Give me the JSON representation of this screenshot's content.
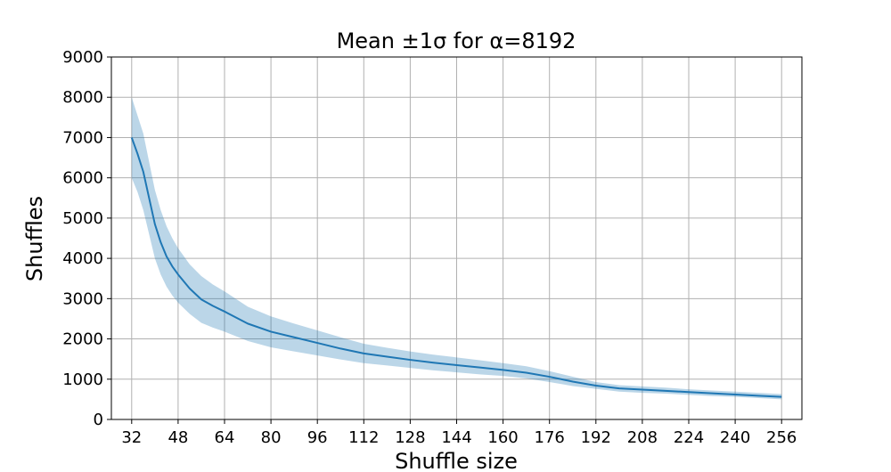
{
  "chart_data": {
    "type": "line",
    "title": "Mean ±1σ for α=8192",
    "xlabel": "Shuffle size",
    "ylabel": "Shuffles",
    "xlim": [
      25,
      263
    ],
    "ylim": [
      0,
      9000
    ],
    "xticks": [
      32,
      48,
      64,
      80,
      96,
      112,
      128,
      144,
      160,
      176,
      192,
      208,
      224,
      240,
      256
    ],
    "xtick_labels": [
      "32",
      "48",
      "64",
      "80",
      "96",
      "112",
      "128",
      "144",
      "160",
      "176",
      "192",
      "208",
      "224",
      "240",
      "256"
    ],
    "yticks": [
      0,
      1000,
      2000,
      3000,
      4000,
      5000,
      6000,
      7000,
      8000,
      9000
    ],
    "ytick_labels": [
      "0",
      "1000",
      "2000",
      "3000",
      "4000",
      "5000",
      "6000",
      "7000",
      "8000",
      "9000"
    ],
    "grid": true,
    "colors": {
      "line": "#1f77b4",
      "band": "#1f77b4",
      "grid": "#b0b0b0"
    },
    "series": [
      {
        "name": "Mean",
        "x": [
          32,
          34,
          36,
          38,
          40,
          42,
          44,
          46,
          48,
          52,
          56,
          60,
          64,
          72,
          80,
          88,
          96,
          104,
          112,
          120,
          128,
          136,
          144,
          152,
          160,
          168,
          176,
          184,
          192,
          200,
          208,
          216,
          224,
          232,
          240,
          248,
          256
        ],
        "y": [
          7000,
          6600,
          6150,
          5500,
          4850,
          4400,
          4050,
          3800,
          3600,
          3250,
          2980,
          2820,
          2680,
          2380,
          2180,
          2040,
          1900,
          1760,
          1640,
          1560,
          1480,
          1410,
          1350,
          1290,
          1230,
          1160,
          1060,
          940,
          840,
          770,
          740,
          710,
          680,
          650,
          620,
          590,
          560
        ],
        "y_lower": [
          6000,
          5650,
          5200,
          4600,
          4000,
          3600,
          3300,
          3080,
          2900,
          2620,
          2400,
          2280,
          2180,
          1950,
          1790,
          1690,
          1590,
          1490,
          1400,
          1340,
          1280,
          1220,
          1170,
          1120,
          1080,
          1020,
          930,
          830,
          760,
          690,
          660,
          640,
          610,
          580,
          560,
          530,
          500
        ],
        "y_upper": [
          8000,
          7550,
          7100,
          6400,
          5700,
          5200,
          4800,
          4500,
          4250,
          3850,
          3560,
          3350,
          3180,
          2800,
          2560,
          2380,
          2210,
          2040,
          1880,
          1780,
          1690,
          1610,
          1540,
          1470,
          1400,
          1320,
          1200,
          1060,
          930,
          850,
          820,
          790,
          750,
          720,
          690,
          660,
          630
        ]
      }
    ]
  }
}
